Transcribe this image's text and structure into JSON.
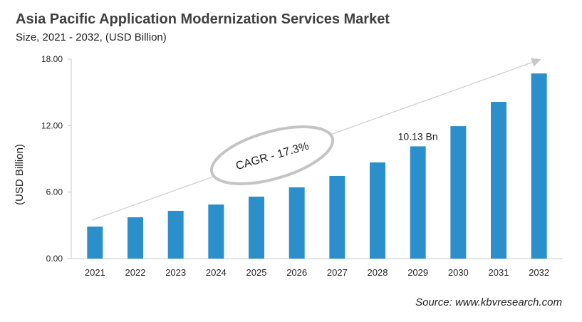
{
  "chart_data": {
    "type": "bar",
    "title": "Asia Pacific Application Modernization Services Market",
    "subtitle": "Size, 2021 - 2032, (USD Billion)",
    "xlabel": "",
    "ylabel": "(USD Billion)",
    "ylim": [
      0,
      18
    ],
    "yticks": [
      "0.00",
      "6.00",
      "12.00",
      "18.00"
    ],
    "categories": [
      "2021",
      "2022",
      "2023",
      "2024",
      "2025",
      "2026",
      "2027",
      "2028",
      "2029",
      "2030",
      "2031",
      "2032"
    ],
    "values": [
      2.89,
      3.73,
      4.31,
      4.88,
      5.59,
      6.43,
      7.46,
      8.68,
      10.13,
      11.95,
      14.14,
      16.71
    ],
    "data_labels": [
      {
        "category": "2029",
        "text": "10.13 Bn"
      }
    ],
    "annotation": "CAGR - 17.3%",
    "bar_color": "#2b8fcc",
    "grid": false,
    "source": "Source: www.kbvresearch.com"
  }
}
